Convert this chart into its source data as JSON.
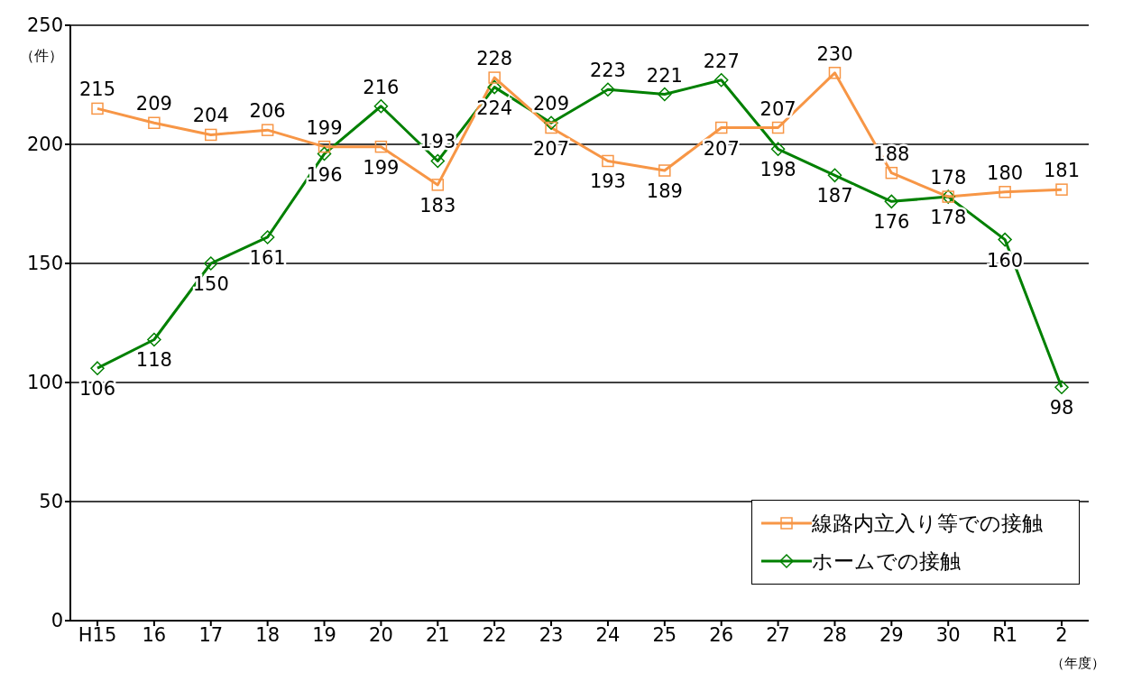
{
  "chart_data": {
    "type": "line",
    "ylabel": "（件）",
    "xlabel": "（年度）",
    "categories": [
      "H15",
      "16",
      "17",
      "18",
      "19",
      "20",
      "21",
      "22",
      "23",
      "24",
      "25",
      "26",
      "27",
      "28",
      "29",
      "30",
      "R1",
      "2"
    ],
    "series": [
      {
        "name": "線路内立入り等での接触",
        "color": "#f79646",
        "marker": "square",
        "values": [
          215,
          209,
          204,
          206,
          199,
          199,
          183,
          228,
          207,
          193,
          189,
          207,
          207,
          230,
          188,
          178,
          180,
          181
        ]
      },
      {
        "name": "ホームでの接触",
        "color": "#008000",
        "marker": "diamond",
        "values": [
          106,
          118,
          150,
          161,
          196,
          216,
          193,
          224,
          209,
          223,
          221,
          227,
          198,
          187,
          176,
          178,
          160,
          98
        ]
      }
    ],
    "ylim": [
      0,
      250
    ],
    "yticks": [
      0,
      50,
      100,
      150,
      200,
      250
    ],
    "grid": "y",
    "legend": "bottom right",
    "data_labels": true
  }
}
